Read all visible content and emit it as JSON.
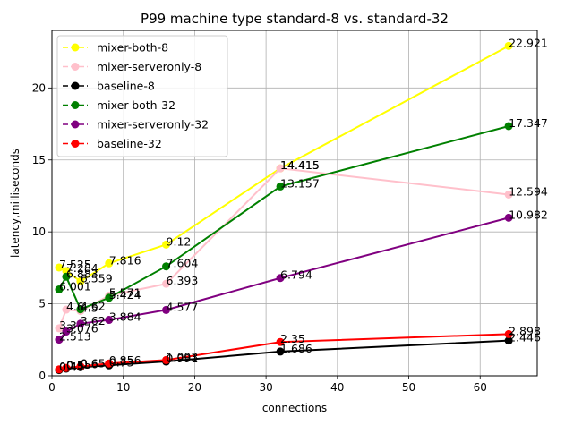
{
  "chart_data": {
    "type": "line",
    "title": "P99 machine type standard-8 vs. standard-32",
    "xlabel": "connections",
    "ylabel": "latency,milliseconds",
    "xlim": [
      0,
      68
    ],
    "ylim": [
      0,
      24
    ],
    "xticks": [
      0,
      10,
      20,
      30,
      40,
      50,
      60
    ],
    "yticks": [
      0,
      5,
      10,
      15,
      20
    ],
    "grid": true,
    "legend_position": "top-left",
    "series": [
      {
        "name": "mixer-both-8",
        "color": "#ffff00",
        "points": [
          {
            "x": 1,
            "y": 7.525,
            "label": "7.525"
          },
          {
            "x": 2,
            "y": 7.284,
            "label": "7.284"
          },
          {
            "x": 4,
            "y": 6.559,
            "label": "6.559"
          },
          {
            "x": 8,
            "y": 7.816,
            "label": "7.816"
          },
          {
            "x": 16,
            "y": 9.12,
            "label": "9.12"
          },
          {
            "x": 32,
            "y": 14.415,
            "label": "14.415"
          },
          {
            "x": 64,
            "y": 22.921,
            "label": "22.921"
          }
        ]
      },
      {
        "name": "mixer-serveronly-8",
        "color": "#ffc0cb",
        "points": [
          {
            "x": 1,
            "y": 3.3,
            "label": "3.3"
          },
          {
            "x": 2,
            "y": 4.6,
            "label": "4.6"
          },
          {
            "x": 4,
            "y": 4.5,
            "label": "4.5"
          },
          {
            "x": 8,
            "y": 5.571,
            "label": "5.571"
          },
          {
            "x": 16,
            "y": 6.393,
            "label": "6.393"
          },
          {
            "x": 32,
            "y": 14.415,
            "label": "14.415"
          },
          {
            "x": 64,
            "y": 12.594,
            "label": "12.594"
          }
        ]
      },
      {
        "name": "baseline-8",
        "color": "#000000",
        "points": [
          {
            "x": 1,
            "y": 0.4,
            "label": "0.4"
          },
          {
            "x": 2,
            "y": 0.5,
            "label": "0.5"
          },
          {
            "x": 4,
            "y": 0.6,
            "label": "0.6"
          },
          {
            "x": 8,
            "y": 0.73,
            "label": "0.73"
          },
          {
            "x": 16,
            "y": 0.991,
            "label": "0.991"
          },
          {
            "x": 32,
            "y": 1.686,
            "label": "1.686"
          },
          {
            "x": 64,
            "y": 2.446,
            "label": "2.446"
          }
        ]
      },
      {
        "name": "mixer-both-32",
        "color": "#008000",
        "points": [
          {
            "x": 1,
            "y": 6.001,
            "label": "6.001"
          },
          {
            "x": 2,
            "y": 6.883,
            "label": "6.883"
          },
          {
            "x": 4,
            "y": 4.62,
            "label": "4.62"
          },
          {
            "x": 8,
            "y": 5.424,
            "label": "5.424"
          },
          {
            "x": 16,
            "y": 7.604,
            "label": "7.604"
          },
          {
            "x": 32,
            "y": 13.157,
            "label": "13.157"
          },
          {
            "x": 64,
            "y": 17.347,
            "label": "17.347"
          }
        ]
      },
      {
        "name": "mixer-serveronly-32",
        "color": "#800080",
        "points": [
          {
            "x": 1,
            "y": 2.513,
            "label": "2.513"
          },
          {
            "x": 2,
            "y": 3.076,
            "label": "3.076"
          },
          {
            "x": 4,
            "y": 3.62,
            "label": "3.62"
          },
          {
            "x": 8,
            "y": 3.884,
            "label": "3.884"
          },
          {
            "x": 16,
            "y": 4.577,
            "label": "4.577"
          },
          {
            "x": 32,
            "y": 6.794,
            "label": "6.794"
          },
          {
            "x": 64,
            "y": 10.982,
            "label": "10.982"
          }
        ]
      },
      {
        "name": "baseline-32",
        "color": "#ff0000",
        "points": [
          {
            "x": 1,
            "y": 0.45,
            "label": "0.45"
          },
          {
            "x": 2,
            "y": 0.55,
            "label": "0.55"
          },
          {
            "x": 4,
            "y": 0.65,
            "label": "0.65"
          },
          {
            "x": 8,
            "y": 0.856,
            "label": "0.856"
          },
          {
            "x": 16,
            "y": 1.093,
            "label": "1.093"
          },
          {
            "x": 32,
            "y": 2.35,
            "label": "2.35"
          },
          {
            "x": 64,
            "y": 2.898,
            "label": "2.898"
          }
        ]
      }
    ]
  }
}
